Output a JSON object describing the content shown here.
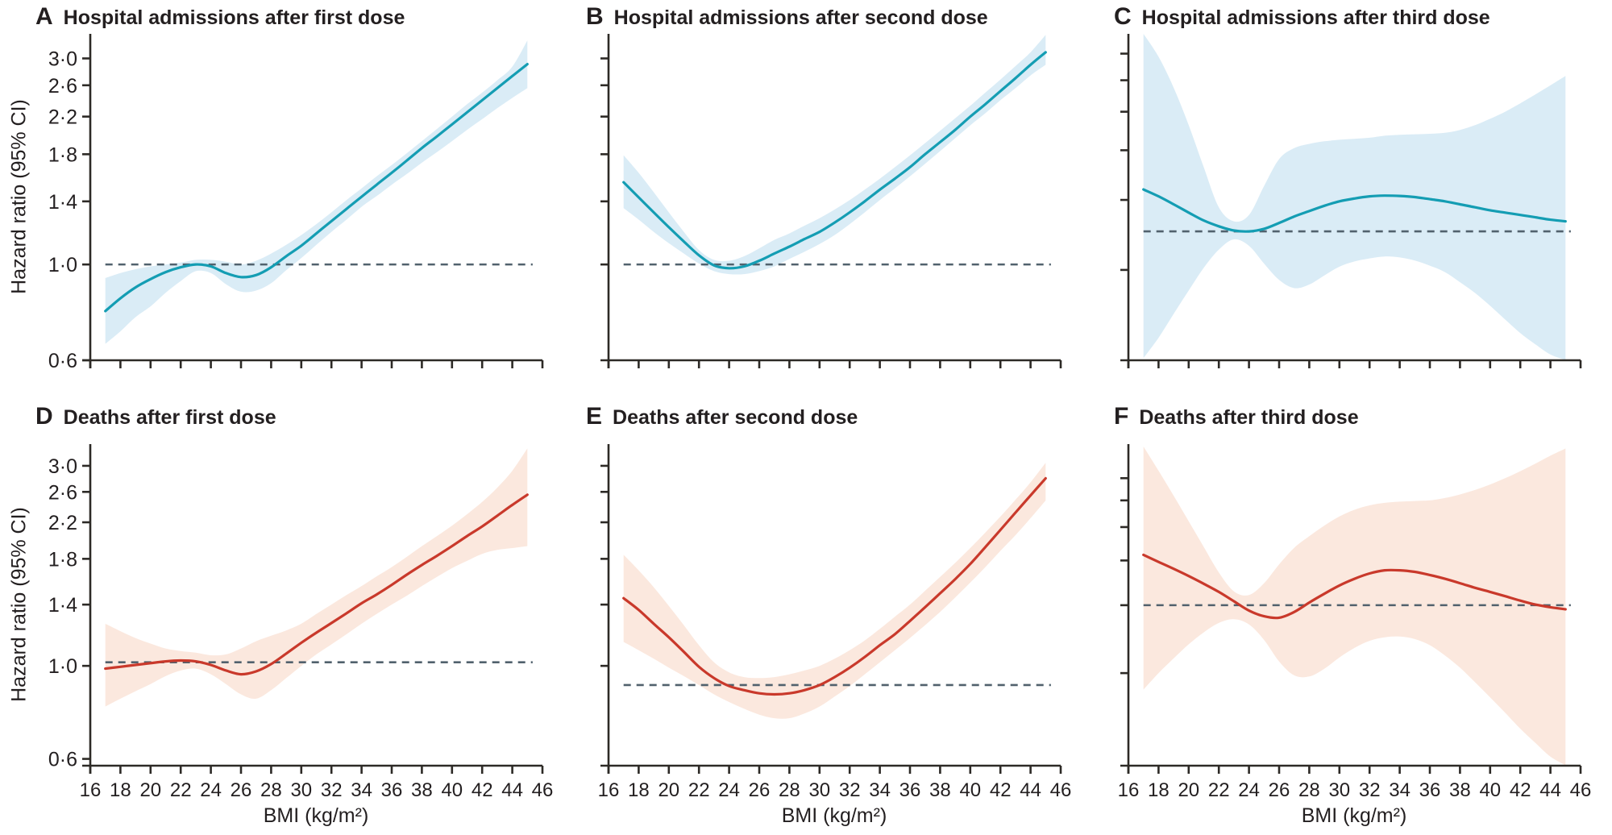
{
  "figure": {
    "y_axis_title": "Hazard ratio (95% CI)",
    "x_axis_title": "BMI (kg/m²)",
    "colors": {
      "teal_line": "#149db3",
      "teal_band": "#daecf6",
      "red_line": "#c9392b",
      "red_band": "#fbe8de",
      "axis": "#2d2a26",
      "dashed_reference": "#51616d",
      "text": "#231f20"
    }
  },
  "chart_data": {
    "type": "line",
    "y_scale": "log",
    "xlabel": "BMI (kg/m²)",
    "ylabel": "Hazard ratio (95% CI)",
    "x_range": [
      16,
      46
    ],
    "x_ticks": [
      16,
      18,
      20,
      22,
      24,
      26,
      28,
      30,
      32,
      34,
      36,
      38,
      40,
      42,
      44,
      46
    ],
    "x_tick_labels": [
      "16",
      "18",
      "20",
      "22",
      "24",
      "26",
      "28",
      "30",
      "32",
      "34",
      "36",
      "38",
      "40",
      "42",
      "44",
      "46"
    ],
    "bmi": [
      17,
      18,
      19,
      20,
      21,
      22,
      23,
      24,
      25,
      26,
      27,
      28,
      29,
      30,
      31,
      32,
      33,
      34,
      35,
      36,
      37,
      38,
      39,
      40,
      41,
      42,
      43,
      44,
      45
    ],
    "panels": [
      {
        "id": "A",
        "panel_label": "A",
        "title": "Hospital admissions after first dose",
        "color_key": "teal",
        "y_domain": [
          0.6,
          3.42
        ],
        "y_ticks": [
          3.0,
          2.6,
          2.2,
          1.8,
          1.4,
          1.0,
          0.6
        ],
        "y_tick_labels": [
          "3·0",
          "2·6",
          "2·2",
          "1·8",
          "1·4",
          "1·0",
          "0·6"
        ],
        "dashed_reference_value": 1.0,
        "hazard_ratio": [
          0.78,
          0.835,
          0.885,
          0.925,
          0.96,
          0.985,
          1.0,
          0.99,
          0.955,
          0.935,
          0.945,
          0.985,
          1.045,
          1.105,
          1.18,
          1.26,
          1.345,
          1.435,
          1.53,
          1.63,
          1.74,
          1.86,
          1.98,
          2.11,
          2.25,
          2.4,
          2.56,
          2.73,
          2.91
        ],
        "ci_upper": [
          0.93,
          0.955,
          0.975,
          0.99,
          1.0,
          1.01,
          1.025,
          1.025,
          1.015,
          1.0,
          1.02,
          1.06,
          1.11,
          1.17,
          1.24,
          1.32,
          1.41,
          1.5,
          1.6,
          1.7,
          1.81,
          1.93,
          2.06,
          2.2,
          2.35,
          2.5,
          2.67,
          2.87,
          3.3
        ],
        "ci_lower": [
          0.655,
          0.7,
          0.755,
          0.8,
          0.86,
          0.915,
          0.965,
          0.955,
          0.9,
          0.865,
          0.87,
          0.905,
          0.97,
          1.035,
          1.11,
          1.19,
          1.27,
          1.36,
          1.44,
          1.53,
          1.62,
          1.72,
          1.82,
          1.93,
          2.05,
          2.17,
          2.3,
          2.43,
          2.56
        ]
      },
      {
        "id": "B",
        "panel_label": "B",
        "title": "Hospital admissions after second dose",
        "color_key": "teal",
        "y_domain": [
          0.6,
          3.42
        ],
        "y_ticks": [
          3.0,
          2.6,
          2.2,
          1.8,
          1.4,
          1.0
        ],
        "y_tick_labels": null,
        "dashed_reference_value": 1.0,
        "hazard_ratio": [
          1.55,
          1.43,
          1.32,
          1.22,
          1.13,
          1.05,
          0.995,
          0.98,
          0.99,
          1.02,
          1.06,
          1.1,
          1.145,
          1.19,
          1.25,
          1.32,
          1.4,
          1.49,
          1.58,
          1.68,
          1.8,
          1.92,
          2.05,
          2.2,
          2.35,
          2.52,
          2.7,
          2.9,
          3.1
        ],
        "ci_upper": [
          1.79,
          1.63,
          1.47,
          1.32,
          1.19,
          1.08,
          1.025,
          1.02,
          1.045,
          1.09,
          1.14,
          1.18,
          1.23,
          1.28,
          1.34,
          1.41,
          1.49,
          1.58,
          1.68,
          1.79,
          1.91,
          2.04,
          2.18,
          2.33,
          2.5,
          2.68,
          2.88,
          3.1,
          3.4
        ],
        "ci_lower": [
          1.35,
          1.27,
          1.19,
          1.12,
          1.06,
          1.005,
          0.965,
          0.95,
          0.95,
          0.965,
          0.99,
          1.03,
          1.07,
          1.115,
          1.17,
          1.24,
          1.32,
          1.41,
          1.5,
          1.6,
          1.71,
          1.83,
          1.96,
          2.1,
          2.24,
          2.4,
          2.56,
          2.74,
          2.9
        ]
      },
      {
        "id": "C",
        "panel_label": "C",
        "title": "Hospital admissions after third dose",
        "color_key": "teal",
        "y_domain": [
          0.474,
          3.14
        ],
        "y_ticks": [
          2.8,
          2.4,
          2.0,
          1.6,
          1.2,
          0.8
        ],
        "y_tick_labels": null,
        "dashed_reference_value": 1.0,
        "hazard_ratio": [
          1.275,
          1.225,
          1.17,
          1.115,
          1.065,
          1.03,
          1.005,
          1.0,
          1.015,
          1.05,
          1.09,
          1.125,
          1.16,
          1.19,
          1.21,
          1.225,
          1.23,
          1.228,
          1.22,
          1.205,
          1.19,
          1.17,
          1.15,
          1.13,
          1.115,
          1.1,
          1.085,
          1.07,
          1.06
        ],
        "ci_upper": [
          3.14,
          2.75,
          2.3,
          1.85,
          1.45,
          1.15,
          1.06,
          1.1,
          1.3,
          1.52,
          1.62,
          1.66,
          1.685,
          1.7,
          1.71,
          1.72,
          1.74,
          1.75,
          1.755,
          1.76,
          1.77,
          1.8,
          1.85,
          1.92,
          2.0,
          2.1,
          2.21,
          2.33,
          2.46
        ],
        "ci_lower": [
          0.48,
          0.54,
          0.62,
          0.71,
          0.81,
          0.9,
          0.955,
          0.92,
          0.83,
          0.755,
          0.72,
          0.735,
          0.775,
          0.815,
          0.84,
          0.855,
          0.865,
          0.86,
          0.845,
          0.82,
          0.79,
          0.745,
          0.7,
          0.65,
          0.6,
          0.555,
          0.52,
          0.49,
          0.475
        ]
      },
      {
        "id": "D",
        "panel_label": "D",
        "title": "Deaths after first dose",
        "color_key": "red",
        "y_domain": [
          0.578,
          3.38
        ],
        "y_ticks": [
          3.0,
          2.6,
          2.2,
          1.8,
          1.4,
          1.0,
          0.6
        ],
        "y_tick_labels": [
          "3·0",
          "2·6",
          "2·2",
          "1·8",
          "1·4",
          "1·0",
          "0·6"
        ],
        "dashed_reference_value": 1.02,
        "hazard_ratio": [
          0.985,
          0.995,
          1.005,
          1.015,
          1.025,
          1.03,
          1.025,
          1.005,
          0.975,
          0.955,
          0.97,
          1.01,
          1.07,
          1.135,
          1.2,
          1.265,
          1.335,
          1.41,
          1.48,
          1.56,
          1.65,
          1.74,
          1.83,
          1.93,
          2.04,
          2.15,
          2.28,
          2.42,
          2.56
        ],
        "ci_upper": [
          1.26,
          1.21,
          1.165,
          1.13,
          1.1,
          1.085,
          1.075,
          1.06,
          1.065,
          1.1,
          1.145,
          1.18,
          1.215,
          1.26,
          1.33,
          1.4,
          1.475,
          1.55,
          1.635,
          1.72,
          1.82,
          1.93,
          2.04,
          2.16,
          2.3,
          2.46,
          2.66,
          2.92,
          3.3
        ],
        "ci_lower": [
          0.8,
          0.835,
          0.87,
          0.905,
          0.945,
          0.975,
          0.985,
          0.955,
          0.905,
          0.855,
          0.835,
          0.875,
          0.935,
          1.0,
          1.065,
          1.125,
          1.19,
          1.26,
          1.33,
          1.4,
          1.47,
          1.55,
          1.63,
          1.71,
          1.78,
          1.85,
          1.89,
          1.91,
          1.93
        ]
      },
      {
        "id": "E",
        "panel_label": "E",
        "title": "Deaths after second dose",
        "color_key": "red",
        "y_domain": [
          0.578,
          3.38
        ],
        "y_ticks": [
          3.0,
          2.6,
          2.2,
          1.8,
          1.4,
          1.0
        ],
        "y_tick_labels": null,
        "dashed_reference_value": 0.9,
        "hazard_ratio": [
          1.45,
          1.36,
          1.26,
          1.17,
          1.08,
          0.995,
          0.935,
          0.895,
          0.875,
          0.86,
          0.855,
          0.86,
          0.875,
          0.9,
          0.94,
          0.99,
          1.05,
          1.12,
          1.19,
          1.28,
          1.38,
          1.49,
          1.61,
          1.75,
          1.92,
          2.11,
          2.32,
          2.55,
          2.8
        ],
        "ci_upper": [
          1.84,
          1.69,
          1.54,
          1.39,
          1.25,
          1.12,
          1.02,
          0.965,
          0.94,
          0.935,
          0.94,
          0.955,
          0.975,
          1.0,
          1.04,
          1.09,
          1.15,
          1.225,
          1.31,
          1.4,
          1.51,
          1.63,
          1.76,
          1.91,
          2.08,
          2.27,
          2.49,
          2.74,
          3.05
        ],
        "ci_lower": [
          1.14,
          1.09,
          1.04,
          0.99,
          0.945,
          0.9,
          0.855,
          0.82,
          0.79,
          0.765,
          0.75,
          0.75,
          0.77,
          0.8,
          0.845,
          0.895,
          0.955,
          1.02,
          1.09,
          1.165,
          1.25,
          1.345,
          1.455,
          1.58,
          1.72,
          1.88,
          2.05,
          2.25,
          2.48
        ]
      },
      {
        "id": "F",
        "panel_label": "F",
        "title": "Deaths after third dose",
        "color_key": "red",
        "y_domain": [
          0.299,
          3.36
        ],
        "y_ticks": [
          2.6,
          2.2,
          1.8,
          1.4,
          1.0,
          0.6
        ],
        "y_tick_labels": null,
        "dashed_reference_value": 1.0,
        "hazard_ratio": [
          1.46,
          1.385,
          1.315,
          1.245,
          1.175,
          1.105,
          1.03,
          0.96,
          0.92,
          0.91,
          0.95,
          1.02,
          1.09,
          1.16,
          1.22,
          1.27,
          1.3,
          1.3,
          1.285,
          1.255,
          1.22,
          1.18,
          1.14,
          1.105,
          1.07,
          1.035,
          1.005,
          0.985,
          0.97
        ],
        "ci_upper": [
          3.3,
          2.75,
          2.28,
          1.88,
          1.55,
          1.28,
          1.11,
          1.08,
          1.18,
          1.36,
          1.54,
          1.68,
          1.82,
          1.95,
          2.05,
          2.12,
          2.16,
          2.18,
          2.19,
          2.2,
          2.24,
          2.3,
          2.38,
          2.48,
          2.6,
          2.74,
          2.9,
          3.08,
          3.25
        ],
        "ci_lower": [
          0.53,
          0.6,
          0.67,
          0.745,
          0.815,
          0.875,
          0.9,
          0.865,
          0.77,
          0.655,
          0.59,
          0.585,
          0.62,
          0.675,
          0.725,
          0.765,
          0.785,
          0.79,
          0.775,
          0.74,
          0.685,
          0.625,
          0.56,
          0.5,
          0.445,
          0.395,
          0.355,
          0.32,
          0.3
        ]
      }
    ]
  }
}
